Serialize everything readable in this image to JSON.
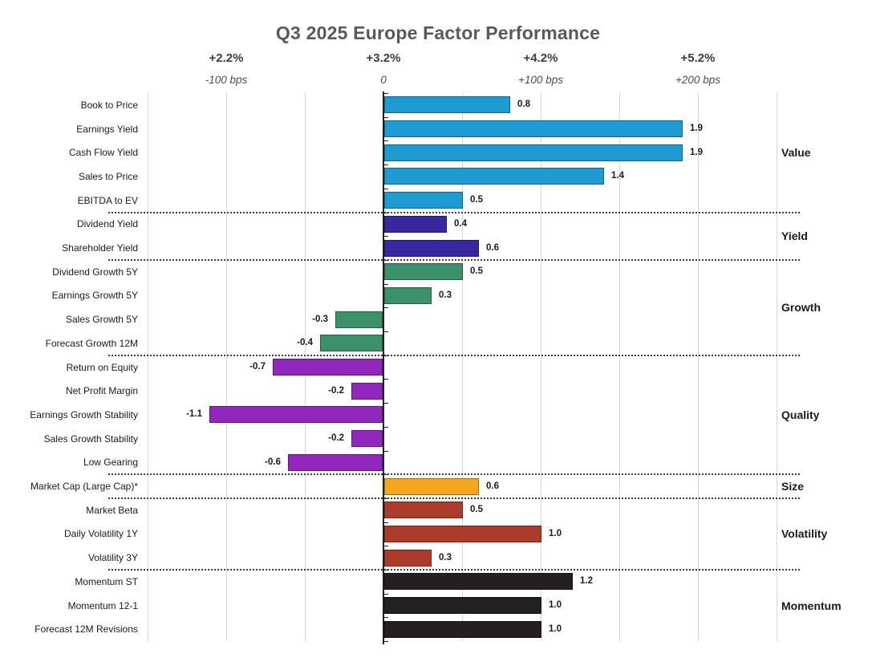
{
  "title": "Q3 2025 Europe Factor Performance",
  "axis": {
    "headers": [
      {
        "pct": "+2.2%",
        "bps_label": "-100 bps",
        "bps": -100
      },
      {
        "pct": "+3.2%",
        "bps_label": "0",
        "bps": 0
      },
      {
        "pct": "+4.2%",
        "bps_label": "+100 bps",
        "bps": 100
      },
      {
        "pct": "+5.2%",
        "bps_label": "+200 bps",
        "bps": 200
      }
    ]
  },
  "chart_data": {
    "type": "bar",
    "orientation": "horizontal",
    "title": "Q3 2025 Europe Factor Performance",
    "value_unit": "percent (labels show bps-relative scale)",
    "axis_range_bps": [
      -150,
      250
    ],
    "gridline_step_bps": 50,
    "grid": true,
    "group_label_position": "right",
    "groups": [
      {
        "name": "Value",
        "color": "#1E9BD2",
        "factors": [
          {
            "label": "Book to Price",
            "value": 0.8,
            "display": "0.8"
          },
          {
            "label": "Earnings Yield",
            "value": 1.9,
            "display": "1.9"
          },
          {
            "label": "Cash Flow Yield",
            "value": 1.9,
            "display": "1.9"
          },
          {
            "label": "Sales to Price",
            "value": 1.4,
            "display": "1.4"
          },
          {
            "label": "EBITDA to EV",
            "value": 0.5,
            "display": "0.5"
          }
        ]
      },
      {
        "name": "Yield",
        "color": "#38289F",
        "factors": [
          {
            "label": "Dividend Yield",
            "value": 0.4,
            "display": "0.4"
          },
          {
            "label": "Shareholder Yield",
            "value": 0.6,
            "display": "0.6"
          }
        ]
      },
      {
        "name": "Growth",
        "color": "#3B9169",
        "factors": [
          {
            "label": "Dividend Growth 5Y",
            "value": 0.5,
            "display": "0.5"
          },
          {
            "label": "Earnings Growth 5Y",
            "value": 0.3,
            "display": "0.3"
          },
          {
            "label": "Sales Growth 5Y",
            "value": -0.3,
            "display": "-0.3"
          },
          {
            "label": "Forecast Growth 12M",
            "value": -0.4,
            "display": "-0.4"
          }
        ]
      },
      {
        "name": "Quality",
        "color": "#9227BE",
        "factors": [
          {
            "label": "Return on Equity",
            "value": -0.7,
            "display": "-0.7"
          },
          {
            "label": "Net Profit Margin",
            "value": -0.2,
            "display": "-0.2"
          },
          {
            "label": "Earnings Growth Stability",
            "value": -1.1,
            "display": "-1.1"
          },
          {
            "label": "Sales Growth Stability",
            "value": -0.2,
            "display": "-0.2"
          },
          {
            "label": "Low Gearing",
            "value": -0.6,
            "display": "-0.6"
          }
        ]
      },
      {
        "name": "Size",
        "color": "#F6A51E",
        "factors": [
          {
            "label": "Market Cap (Large Cap)*",
            "value": 0.6,
            "display": "0.6"
          }
        ]
      },
      {
        "name": "Volatility",
        "color": "#AD3B2B",
        "factors": [
          {
            "label": "Market Beta",
            "value": 0.5,
            "display": "0.5"
          },
          {
            "label": "Daily Volatility 1Y",
            "value": 1.0,
            "display": "1.0"
          },
          {
            "label": "Volatility 3Y",
            "value": 0.3,
            "display": "0.3"
          }
        ]
      },
      {
        "name": "Momentum",
        "color": "#242021",
        "factors": [
          {
            "label": "Momentum ST",
            "value": 1.2,
            "display": "1.2"
          },
          {
            "label": "Momentum 12-1",
            "value": 1.0,
            "display": "1.0"
          },
          {
            "label": "Forecast 12M Revisions",
            "value": 1.0,
            "display": "1.0"
          }
        ]
      }
    ]
  }
}
